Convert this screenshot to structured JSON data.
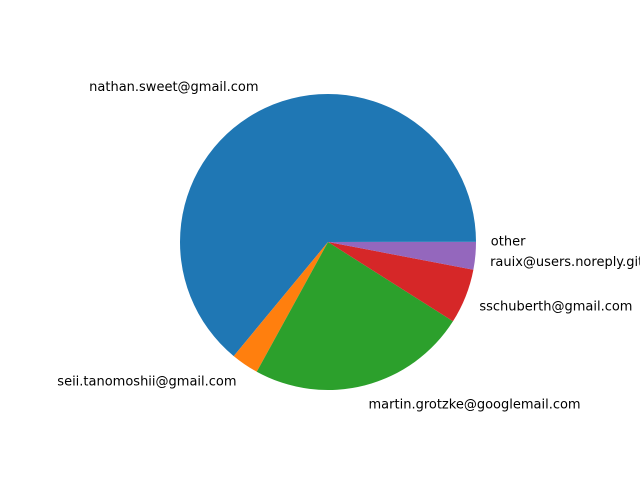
{
  "chart_data": {
    "type": "pie",
    "title": "",
    "legend": "none",
    "start_angle_deg": 0,
    "direction": "counterclockwise",
    "slices": [
      {
        "label": "other",
        "value": 0.02,
        "color": "#1f77b4"
      },
      {
        "label": "nathan.sweet@gmail.com",
        "value": 64.0,
        "color": "#1f77b4"
      },
      {
        "label": "seii.tanomoshii@gmail.com",
        "value": 3.0,
        "color": "#ff7f0e"
      },
      {
        "label": "martin.grotzke@googlemail.com",
        "value": 24.0,
        "color": "#2ca02c"
      },
      {
        "label": "sschuberth@gmail.com",
        "value": 6.0,
        "color": "#d62728"
      },
      {
        "label": "rauix@users.noreply.github.com",
        "value": 3.0,
        "color": "#9467bd"
      }
    ]
  }
}
